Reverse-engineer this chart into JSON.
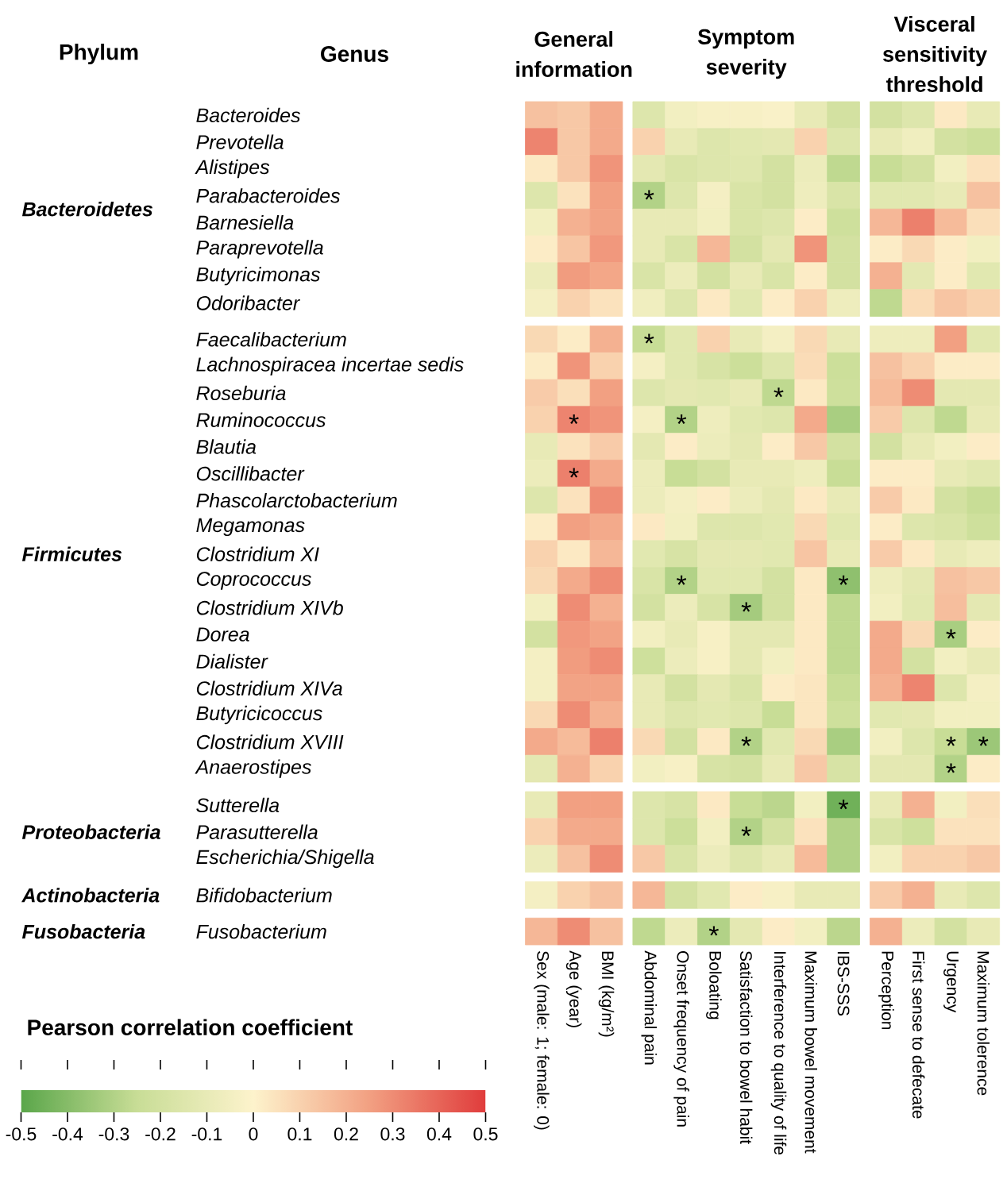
{
  "chart_data": {
    "type": "heatmap",
    "annotations": [
      "Phylum",
      "Genus",
      "General information",
      "Symptom severity",
      "Visceral sensitivity threshold",
      "Bacteroidetes",
      "Firmicutes",
      "Proteobacteria",
      "Actinobacteria",
      "Fusobacteria"
    ],
    "clabel": "Pearson correlation coefficient",
    "clim": [
      -0.5,
      0.5
    ],
    "cticks": [
      -0.5,
      -0.4,
      -0.3,
      -0.2,
      -0.1,
      0,
      0.1,
      0.2,
      0.3,
      0.4,
      0.5
    ],
    "categories": [
      "Sex (male: 1; female: 0)",
      "Age (year)",
      "BMI (kg/m²)",
      "Abdominal pain",
      "Onset frequency of pain",
      "Boloating",
      "Satisfaction to bowel habit",
      "Interference to quality of life",
      "Maximum bowel movement",
      "IBS-SSS",
      "Perception",
      "First sense to defecate",
      "Urgency",
      "Maximum tolerence"
    ],
    "y_categories": [
      "Bacteroides",
      "Prevotella",
      "Alistipes",
      "Parabacteroides",
      "Barnesiella",
      "Paraprevotella",
      "Butyricimonas",
      "Odoribacter",
      "Faecalibacterium",
      "Lachnospiracea incertae sedis",
      "Roseburia",
      "Ruminococcus",
      "Blautia",
      "Oscillibacter",
      "Phascolarctobacterium",
      "Megamonas",
      "Clostridium XI",
      "Coprococcus",
      "Clostridium XIVb",
      "Dorea",
      "Dialister",
      "Clostridium XIVa",
      "Butyricicoccus",
      "Clostridium XVIII",
      "Anaerostipes",
      "Sutterella",
      "Parasutterella",
      "Escherichia/Shigella",
      "Bifidobacterium",
      "Fusobacterium"
    ],
    "cells": [
      [
        0.15,
        0.13,
        0.22,
        -0.15,
        -0.05,
        -0.03,
        -0.03,
        -0.02,
        -0.1,
        -0.2,
        -0.2,
        -0.15,
        0.03,
        -0.1
      ],
      [
        0.32,
        0.13,
        0.22,
        0.1,
        -0.1,
        -0.15,
        -0.13,
        -0.12,
        0.1,
        -0.15,
        -0.1,
        -0.06,
        -0.2,
        -0.23
      ],
      [
        0.03,
        0.13,
        0.28,
        -0.12,
        -0.17,
        -0.15,
        -0.14,
        -0.2,
        -0.08,
        -0.27,
        -0.25,
        -0.2,
        -0.05,
        0.05
      ],
      [
        -0.15,
        0.05,
        0.25,
        -0.3,
        -0.15,
        -0.04,
        -0.17,
        -0.2,
        -0.07,
        -0.17,
        -0.13,
        -0.13,
        -0.1,
        0.15
      ],
      [
        -0.05,
        0.2,
        0.24,
        -0.1,
        -0.1,
        -0.05,
        -0.17,
        -0.15,
        0.02,
        -0.22,
        0.18,
        0.33,
        0.17,
        0.06
      ],
      [
        0.02,
        0.14,
        0.27,
        -0.1,
        -0.17,
        0.18,
        -0.2,
        -0.12,
        0.28,
        -0.2,
        0.02,
        0.08,
        0.02,
        -0.05
      ],
      [
        -0.08,
        0.26,
        0.23,
        -0.17,
        -0.08,
        -0.2,
        -0.1,
        -0.17,
        0.02,
        -0.2,
        0.2,
        -0.12,
        0.02,
        -0.13
      ],
      [
        -0.04,
        0.1,
        0.05,
        -0.06,
        -0.15,
        0.03,
        -0.13,
        0.02,
        0.1,
        -0.07,
        -0.27,
        0.07,
        0.14,
        0.1
      ],
      [
        0.08,
        0.02,
        0.2,
        -0.25,
        -0.13,
        0.1,
        -0.1,
        -0.04,
        0.08,
        -0.1,
        -0.07,
        -0.07,
        0.25,
        -0.13
      ],
      [
        0.02,
        0.28,
        0.1,
        -0.04,
        -0.13,
        -0.18,
        -0.23,
        -0.15,
        0.07,
        -0.23,
        0.15,
        0.1,
        0.02,
        0.02
      ],
      [
        0.12,
        0.06,
        0.25,
        -0.15,
        -0.12,
        -0.13,
        -0.1,
        -0.27,
        0.03,
        -0.22,
        0.17,
        0.3,
        -0.12,
        -0.12
      ],
      [
        0.1,
        0.32,
        0.28,
        -0.04,
        -0.3,
        -0.07,
        -0.13,
        -0.15,
        0.22,
        -0.32,
        0.12,
        -0.15,
        -0.27,
        -0.1
      ],
      [
        -0.1,
        0.05,
        0.12,
        -0.12,
        0.02,
        -0.08,
        -0.12,
        0.02,
        0.13,
        -0.2,
        -0.2,
        -0.1,
        -0.05,
        0.02
      ],
      [
        -0.08,
        0.33,
        0.22,
        -0.08,
        -0.25,
        -0.2,
        -0.1,
        -0.1,
        -0.07,
        -0.25,
        0.02,
        0.02,
        -0.1,
        -0.13
      ],
      [
        -0.15,
        0.05,
        0.3,
        -0.08,
        -0.04,
        0.02,
        -0.08,
        -0.12,
        0.03,
        -0.1,
        0.12,
        0.03,
        -0.2,
        -0.25
      ],
      [
        0.02,
        0.25,
        0.22,
        0.03,
        -0.05,
        -0.15,
        -0.15,
        -0.13,
        0.08,
        -0.13,
        0.02,
        -0.15,
        -0.17,
        -0.22
      ],
      [
        0.1,
        0.03,
        0.18,
        -0.13,
        -0.18,
        -0.12,
        -0.12,
        -0.13,
        0.14,
        -0.1,
        0.12,
        0.03,
        -0.1,
        -0.07
      ],
      [
        0.08,
        0.22,
        0.3,
        -0.17,
        -0.3,
        -0.13,
        -0.13,
        -0.2,
        0.03,
        -0.38,
        -0.07,
        -0.12,
        0.15,
        0.13
      ],
      [
        -0.05,
        0.3,
        0.2,
        -0.2,
        -0.08,
        -0.18,
        -0.33,
        -0.2,
        0.03,
        -0.27,
        -0.05,
        -0.13,
        0.16,
        -0.12
      ],
      [
        -0.2,
        0.27,
        0.24,
        -0.05,
        -0.1,
        -0.03,
        -0.12,
        -0.12,
        0.03,
        -0.27,
        0.22,
        0.08,
        -0.32,
        0.02
      ],
      [
        -0.04,
        0.26,
        0.3,
        -0.22,
        -0.08,
        -0.03,
        -0.12,
        -0.05,
        0.03,
        -0.27,
        0.22,
        -0.2,
        -0.05,
        -0.1
      ],
      [
        -0.04,
        0.24,
        0.24,
        -0.1,
        -0.2,
        -0.12,
        -0.17,
        0.02,
        0.04,
        -0.25,
        0.2,
        0.32,
        -0.15,
        -0.04
      ],
      [
        0.08,
        0.3,
        0.2,
        -0.1,
        -0.15,
        -0.13,
        -0.15,
        -0.25,
        0.04,
        -0.22,
        -0.13,
        -0.12,
        -0.05,
        -0.05
      ],
      [
        0.22,
        0.17,
        0.33,
        0.08,
        -0.2,
        0.03,
        -0.3,
        -0.13,
        0.08,
        -0.32,
        -0.05,
        -0.15,
        -0.25,
        -0.35
      ],
      [
        -0.12,
        0.2,
        0.1,
        -0.05,
        -0.03,
        -0.18,
        -0.2,
        -0.1,
        0.13,
        -0.18,
        -0.12,
        -0.12,
        -0.3,
        0.02
      ],
      [
        -0.1,
        0.25,
        0.25,
        -0.15,
        -0.18,
        0.03,
        -0.25,
        -0.28,
        -0.05,
        -0.45,
        -0.1,
        0.2,
        -0.05,
        0.06
      ],
      [
        0.1,
        0.22,
        0.22,
        -0.15,
        -0.23,
        -0.05,
        -0.3,
        -0.2,
        0.05,
        -0.3,
        -0.17,
        -0.22,
        0.05,
        0.05
      ],
      [
        -0.08,
        0.15,
        0.3,
        0.13,
        -0.17,
        -0.08,
        -0.15,
        -0.1,
        0.17,
        -0.3,
        -0.05,
        0.1,
        0.1,
        0.13
      ],
      [
        -0.04,
        0.1,
        0.15,
        0.18,
        -0.2,
        -0.13,
        0.02,
        -0.03,
        -0.1,
        -0.1,
        0.12,
        0.2,
        -0.1,
        -0.15
      ],
      [
        0.18,
        0.3,
        0.15,
        -0.27,
        -0.08,
        -0.3,
        -0.12,
        0.02,
        -0.05,
        -0.28,
        0.2,
        -0.08,
        -0.2,
        -0.1
      ]
    ],
    "cell_labels": [
      [
        null,
        null,
        null,
        null,
        null,
        null,
        null,
        null,
        null,
        null,
        null,
        null,
        null,
        null
      ],
      [
        null,
        null,
        null,
        null,
        null,
        null,
        null,
        null,
        null,
        null,
        null,
        null,
        null,
        null
      ],
      [
        null,
        null,
        null,
        null,
        null,
        null,
        null,
        null,
        null,
        null,
        null,
        null,
        null,
        null
      ],
      [
        null,
        null,
        null,
        "*",
        null,
        null,
        null,
        null,
        null,
        null,
        null,
        null,
        null,
        null
      ],
      [
        null,
        null,
        null,
        null,
        null,
        null,
        null,
        null,
        null,
        null,
        null,
        null,
        null,
        null
      ],
      [
        null,
        null,
        null,
        null,
        null,
        null,
        null,
        null,
        null,
        null,
        null,
        null,
        null,
        null
      ],
      [
        null,
        null,
        null,
        null,
        null,
        null,
        null,
        null,
        null,
        null,
        null,
        null,
        null,
        null
      ],
      [
        null,
        null,
        null,
        null,
        null,
        null,
        null,
        null,
        null,
        null,
        null,
        null,
        null,
        null
      ],
      [
        null,
        null,
        null,
        "*",
        null,
        null,
        null,
        null,
        null,
        null,
        null,
        null,
        null,
        null
      ],
      [
        null,
        null,
        null,
        null,
        null,
        null,
        null,
        null,
        null,
        null,
        null,
        null,
        null,
        null
      ],
      [
        null,
        null,
        null,
        null,
        null,
        null,
        null,
        "*",
        null,
        null,
        null,
        null,
        null,
        null
      ],
      [
        null,
        "*",
        null,
        null,
        "*",
        null,
        null,
        null,
        null,
        null,
        null,
        null,
        null,
        null
      ],
      [
        null,
        null,
        null,
        null,
        null,
        null,
        null,
        null,
        null,
        null,
        null,
        null,
        null,
        null
      ],
      [
        null,
        "*",
        null,
        null,
        null,
        null,
        null,
        null,
        null,
        null,
        null,
        null,
        null,
        null
      ],
      [
        null,
        null,
        null,
        null,
        null,
        null,
        null,
        null,
        null,
        null,
        null,
        null,
        null,
        null
      ],
      [
        null,
        null,
        null,
        null,
        null,
        null,
        null,
        null,
        null,
        null,
        null,
        null,
        null,
        null
      ],
      [
        null,
        null,
        null,
        null,
        null,
        null,
        null,
        null,
        null,
        null,
        null,
        null,
        null,
        null
      ],
      [
        null,
        null,
        null,
        null,
        "*",
        null,
        null,
        null,
        null,
        "*",
        null,
        null,
        null,
        null
      ],
      [
        null,
        null,
        null,
        null,
        null,
        null,
        "*",
        null,
        null,
        null,
        null,
        null,
        null,
        null
      ],
      [
        null,
        null,
        null,
        null,
        null,
        null,
        null,
        null,
        null,
        null,
        null,
        null,
        "*",
        null
      ],
      [
        null,
        null,
        null,
        null,
        null,
        null,
        null,
        null,
        null,
        null,
        null,
        null,
        null,
        null
      ],
      [
        null,
        null,
        null,
        null,
        null,
        null,
        null,
        null,
        null,
        null,
        null,
        null,
        null,
        null
      ],
      [
        null,
        null,
        null,
        null,
        null,
        null,
        null,
        null,
        null,
        null,
        null,
        null,
        null,
        null
      ],
      [
        null,
        null,
        null,
        null,
        null,
        null,
        "*",
        null,
        null,
        null,
        null,
        null,
        "*",
        "*"
      ],
      [
        null,
        null,
        null,
        null,
        null,
        null,
        null,
        null,
        null,
        null,
        null,
        null,
        "*",
        null
      ],
      [
        null,
        null,
        null,
        null,
        null,
        null,
        null,
        null,
        null,
        "*",
        null,
        null,
        null,
        null
      ],
      [
        null,
        null,
        null,
        null,
        null,
        null,
        "*",
        null,
        null,
        null,
        null,
        null,
        null,
        null
      ],
      [
        null,
        null,
        null,
        null,
        null,
        null,
        null,
        null,
        null,
        null,
        null,
        null,
        null,
        null
      ],
      [
        null,
        null,
        null,
        null,
        null,
        null,
        null,
        null,
        null,
        null,
        null,
        null,
        null,
        null
      ],
      [
        null,
        null,
        null,
        null,
        null,
        "*",
        null,
        null,
        null,
        null,
        null,
        null,
        null,
        null
      ]
    ]
  }
}
